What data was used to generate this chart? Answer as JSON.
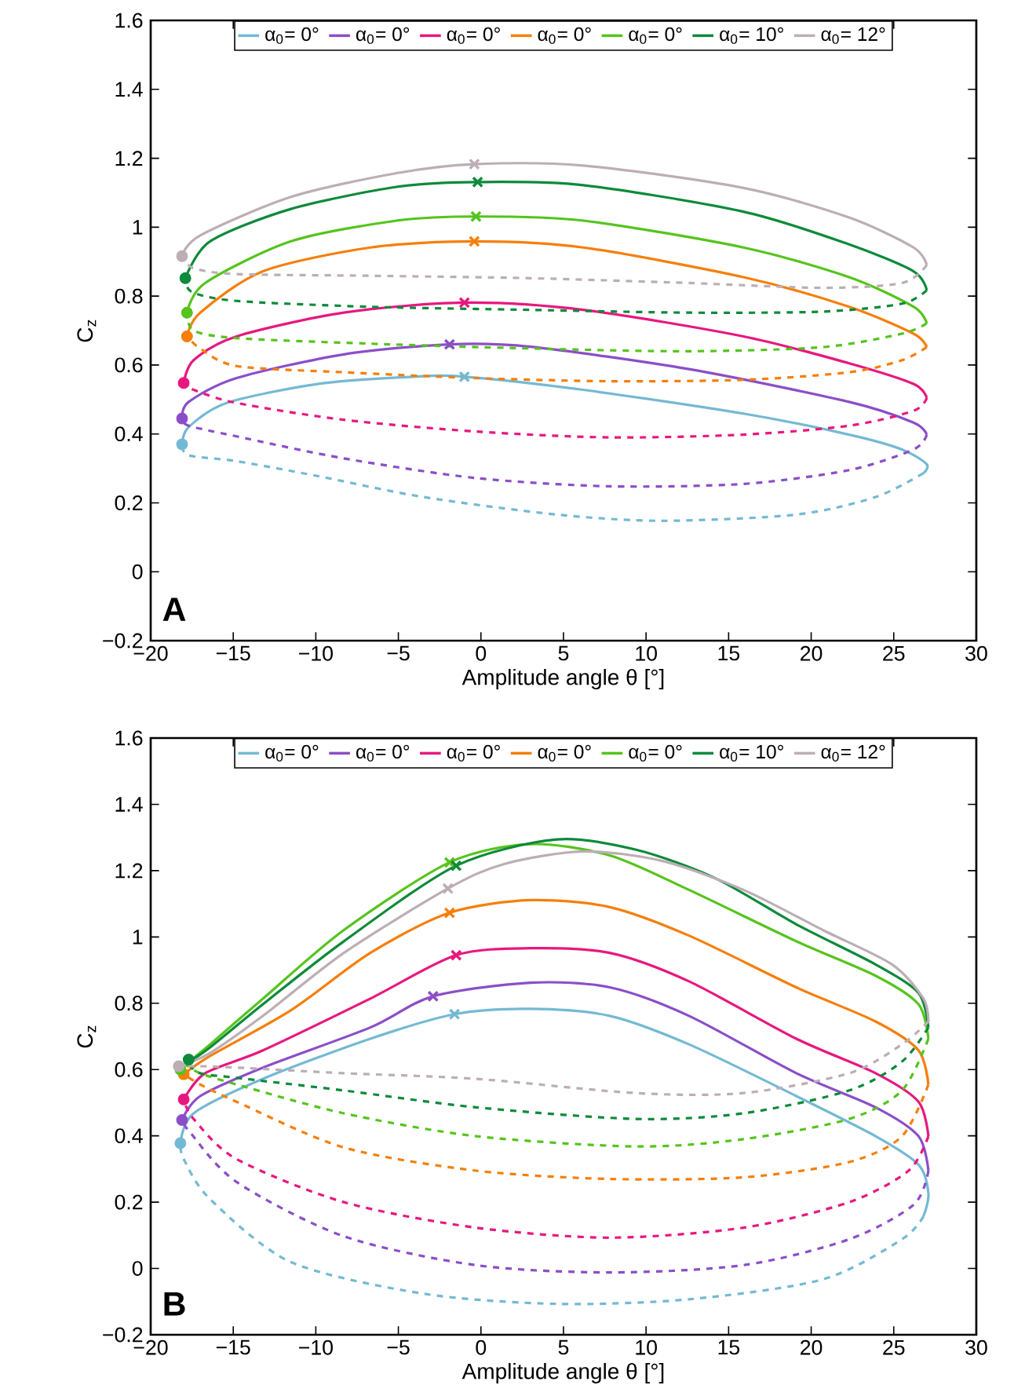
{
  "chart_data": [
    {
      "type": "line",
      "xlabel": "Amplitude angle θ [°]",
      "ylabel": "C$_{z}$",
      "annotations": [
        "**A**"
      ],
      "legend": "top",
      "xlim": [
        -20,
        30
      ],
      "ylim": [
        -0.2,
        1.6
      ],
      "xticks": [
        {
          "value": -20,
          "label": "−20"
        },
        {
          "value": -15,
          "label": "−15"
        },
        {
          "value": -10,
          "label": "−10"
        },
        {
          "value": -5,
          "label": "−5"
        },
        0,
        5,
        10,
        15,
        20,
        25,
        30
      ],
      "yticks": [
        {
          "value": -0.2,
          "label": "−0.2"
        },
        0,
        0.2,
        0.4,
        0.6,
        0.8,
        1,
        1.2,
        1.4,
        1.6
      ],
      "series": [
        {
          "name": "α$_{0}$= 0°",
          "color": "#74b9d3",
          "line_style": "solid",
          "x": [
            -18.1,
            -17.7,
            -15.4,
            -9.9,
            -4.1,
            -1.0,
            6.2,
            15.9,
            22.3,
            25.5,
            27.0,
            26.8
          ],
          "values": [
            0.37,
            0.42,
            0.49,
            0.545,
            0.566,
            0.566,
            0.528,
            0.459,
            0.398,
            0.355,
            0.312,
            0.286
          ]
        },
        {
          "color": "#74b9d3",
          "line_style": "dashed",
          "x": [
            26.8,
            23.9,
            19.1,
            11.0,
            4.6,
            -3.5,
            -9.9,
            -14.8,
            -17.7,
            -18.1
          ],
          "values": [
            0.286,
            0.217,
            0.166,
            0.148,
            0.166,
            0.217,
            0.278,
            0.321,
            0.338,
            0.37
          ]
        },
        {
          "name": "α$_{0}$= 0°",
          "color": "#8b4ec8",
          "line_style": "solid",
          "x": [
            -18.1,
            -17.7,
            -14.8,
            -8.3,
            -1.9,
            3.0,
            12.6,
            22.3,
            26.2,
            27.0
          ],
          "values": [
            0.445,
            0.493,
            0.562,
            0.631,
            0.66,
            0.653,
            0.588,
            0.493,
            0.433,
            0.398
          ]
        },
        {
          "color": "#8b4ec8",
          "line_style": "dashed",
          "x": [
            27.0,
            26.2,
            22.3,
            15.9,
            7.8,
            -0.3,
            -8.3,
            -14.8,
            -17.7,
            -18.1
          ],
          "values": [
            0.398,
            0.355,
            0.295,
            0.255,
            0.248,
            0.272,
            0.329,
            0.393,
            0.424,
            0.445
          ]
        },
        {
          "name": "α$_{0}$= 0°",
          "color": "#e8177f",
          "line_style": "solid",
          "x": [
            -18.0,
            -17.4,
            -14.8,
            -8.3,
            -1.0,
            6.2,
            15.9,
            22.3,
            26.2,
            27.0
          ],
          "values": [
            0.548,
            0.614,
            0.683,
            0.752,
            0.781,
            0.76,
            0.683,
            0.605,
            0.545,
            0.505
          ]
        },
        {
          "color": "#e8177f",
          "line_style": "dashed",
          "x": [
            27.0,
            26.2,
            22.3,
            15.9,
            7.8,
            -0.3,
            -8.3,
            -14.8,
            -17.4,
            -18.0
          ],
          "values": [
            0.505,
            0.467,
            0.424,
            0.398,
            0.39,
            0.407,
            0.441,
            0.49,
            0.528,
            0.548
          ]
        },
        {
          "name": "α$_{0}$= 0°",
          "color": "#f57f0a",
          "line_style": "solid",
          "x": [
            -17.8,
            -17.0,
            -13.2,
            -6.7,
            -0.4,
            6.2,
            15.9,
            22.3,
            26.2,
            27.0
          ],
          "values": [
            0.683,
            0.752,
            0.872,
            0.941,
            0.959,
            0.941,
            0.855,
            0.769,
            0.691,
            0.652
          ]
        },
        {
          "color": "#f57f0a",
          "line_style": "dashed",
          "x": [
            27.0,
            25.5,
            22.3,
            15.9,
            7.8,
            -0.3,
            -8.3,
            -14.8,
            -17.0,
            -17.8
          ],
          "values": [
            0.652,
            0.614,
            0.579,
            0.557,
            0.553,
            0.562,
            0.579,
            0.597,
            0.648,
            0.683
          ]
        },
        {
          "name": "α$_{0}$= 0°",
          "color": "#55c41c",
          "line_style": "solid",
          "x": [
            -17.8,
            -16.7,
            -11.5,
            -5.1,
            -0.3,
            6.2,
            15.9,
            22.3,
            26.2,
            27.0
          ],
          "values": [
            0.752,
            0.838,
            0.959,
            1.019,
            1.031,
            1.019,
            0.941,
            0.855,
            0.769,
            0.721
          ]
        },
        {
          "color": "#55c41c",
          "line_style": "dashed",
          "x": [
            27.0,
            25.5,
            20.7,
            12.6,
            3.0,
            -6.7,
            -14.8,
            -17.4,
            -17.8
          ],
          "values": [
            0.721,
            0.691,
            0.652,
            0.64,
            0.648,
            0.662,
            0.678,
            0.7,
            0.752
          ]
        },
        {
          "name": "α$_{0}$= 10°",
          "color": "#0d8a3a",
          "line_style": "solid",
          "x": [
            -17.9,
            -16.4,
            -11.5,
            -5.1,
            -0.2,
            6.2,
            15.9,
            22.3,
            26.2,
            27.0
          ],
          "values": [
            0.852,
            0.959,
            1.053,
            1.117,
            1.131,
            1.122,
            1.045,
            0.95,
            0.872,
            0.817
          ]
        },
        {
          "color": "#0d8a3a",
          "line_style": "dashed",
          "x": [
            27.0,
            25.5,
            20.7,
            12.6,
            3.0,
            -6.7,
            -14.8,
            -17.5,
            -17.9
          ],
          "values": [
            0.817,
            0.778,
            0.755,
            0.752,
            0.76,
            0.769,
            0.786,
            0.812,
            0.852
          ]
        },
        {
          "name": "α$_{0}$= 12°",
          "color": "#bcaeb5",
          "line_style": "solid",
          "x": [
            -18.1,
            -17.0,
            -11.5,
            -5.1,
            -0.4,
            6.2,
            15.9,
            22.3,
            26.2,
            27.0
          ],
          "values": [
            0.916,
            0.976,
            1.088,
            1.157,
            1.183,
            1.179,
            1.114,
            1.028,
            0.941,
            0.89
          ]
        },
        {
          "color": "#bcaeb5",
          "line_style": "dashed",
          "x": [
            27.0,
            25.5,
            20.7,
            12.6,
            3.0,
            -6.7,
            -14.8,
            -17.4,
            -18.1
          ],
          "values": [
            0.89,
            0.838,
            0.824,
            0.838,
            0.852,
            0.859,
            0.864,
            0.881,
            0.916
          ]
        },
        {
          "type": "scatter",
          "marker": "circle",
          "colors": [
            "#74b9d3",
            "#8b4ec8",
            "#e8177f",
            "#f57f0a",
            "#55c41c",
            "#0d8a3a",
            "#bcaeb5"
          ],
          "x": [
            -18.1,
            -18.1,
            -18.0,
            -17.8,
            -17.8,
            -17.9,
            -18.1
          ],
          "values": [
            0.37,
            0.445,
            0.548,
            0.683,
            0.752,
            0.852,
            0.916
          ]
        },
        {
          "type": "scatter",
          "marker": "cross",
          "colors": [
            "#74b9d3",
            "#8b4ec8",
            "#e8177f",
            "#f57f0a",
            "#55c41c",
            "#0d8a3a",
            "#bcaeb5"
          ],
          "x": [
            -1.0,
            -1.9,
            -1.0,
            -0.4,
            -0.3,
            -0.2,
            -0.4
          ],
          "values": [
            0.566,
            0.66,
            0.781,
            0.959,
            1.031,
            1.131,
            1.183
          ]
        }
      ]
    },
    {
      "type": "line",
      "xlabel": "Amplitude angle θ [°]",
      "ylabel": "C$_{z}$",
      "annotations": [
        "**B**"
      ],
      "legend": "top",
      "xlim": [
        -20,
        30
      ],
      "ylim": [
        -0.2,
        1.6
      ],
      "xticks": [
        {
          "value": -20,
          "label": "−20"
        },
        {
          "value": -15,
          "label": "−15"
        },
        {
          "value": -10,
          "label": "−10"
        },
        {
          "value": -5,
          "label": "−5"
        },
        0,
        5,
        10,
        15,
        20,
        25,
        30
      ],
      "yticks": [
        {
          "value": -0.2,
          "label": "−0.2"
        },
        0,
        0.2,
        0.4,
        0.6,
        0.8,
        1,
        1.2,
        1.4,
        1.6
      ],
      "series": [
        {
          "name": "α$_{0}$= 0°",
          "color": "#74b9d3",
          "line_style": "solid",
          "x": [
            -18.2,
            -17.4,
            -13.2,
            -6.7,
            -1.6,
            3.0,
            7.8,
            12.6,
            19.1,
            23.9,
            26.5,
            27.1,
            26.8
          ],
          "values": [
            0.378,
            0.468,
            0.572,
            0.693,
            0.767,
            0.783,
            0.762,
            0.676,
            0.52,
            0.399,
            0.313,
            0.226,
            0.157
          ]
        },
        {
          "color": "#74b9d3",
          "line_style": "dashed",
          "x": [
            26.8,
            25.5,
            20.7,
            12.6,
            4.6,
            -3.5,
            -11.5,
            -16.4,
            -18.0,
            -18.2
          ],
          "values": [
            0.157,
            0.088,
            -0.033,
            -0.093,
            -0.107,
            -0.076,
            0.019,
            0.209,
            0.33,
            0.378
          ]
        },
        {
          "name": "α$_{0}$= 0°",
          "color": "#8b4ec8",
          "line_style": "solid",
          "x": [
            -18.1,
            -17.0,
            -13.2,
            -6.7,
            -2.9,
            3.0,
            7.8,
            12.6,
            19.1,
            23.9,
            26.5,
            27.1
          ],
          "values": [
            0.448,
            0.52,
            0.606,
            0.727,
            0.821,
            0.862,
            0.848,
            0.762,
            0.589,
            0.486,
            0.399,
            0.295
          ]
        },
        {
          "color": "#8b4ec8",
          "line_style": "dashed",
          "x": [
            27.1,
            26.2,
            22.3,
            15.9,
            7.8,
            -0.3,
            -8.3,
            -14.8,
            -17.7,
            -18.1
          ],
          "values": [
            0.295,
            0.192,
            0.088,
            0.01,
            -0.012,
            0.01,
            0.097,
            0.261,
            0.416,
            0.448
          ]
        },
        {
          "name": "α$_{0}$= 0°",
          "color": "#e8177f",
          "line_style": "solid",
          "x": [
            -18.0,
            -16.7,
            -13.2,
            -6.7,
            -1.5,
            3.0,
            7.8,
            12.6,
            19.1,
            23.9,
            26.5,
            27.1
          ],
          "values": [
            0.51,
            0.589,
            0.658,
            0.814,
            0.945,
            0.966,
            0.952,
            0.866,
            0.693,
            0.589,
            0.503,
            0.399
          ]
        },
        {
          "color": "#e8177f",
          "line_style": "dashed",
          "x": [
            27.1,
            25.9,
            22.3,
            15.9,
            7.8,
            -0.3,
            -8.3,
            -14.8,
            -17.4,
            -18.0
          ],
          "values": [
            0.399,
            0.295,
            0.2,
            0.123,
            0.093,
            0.123,
            0.2,
            0.33,
            0.451,
            0.51
          ]
        },
        {
          "name": "α$_{0}$= 0°",
          "color": "#f57f0a",
          "line_style": "solid",
          "x": [
            -18.0,
            -16.4,
            -11.5,
            -6.7,
            -1.9,
            3.0,
            7.8,
            12.6,
            19.1,
            23.9,
            26.5,
            27.1
          ],
          "values": [
            0.586,
            0.641,
            0.779,
            0.952,
            1.073,
            1.111,
            1.09,
            1.004,
            0.848,
            0.745,
            0.658,
            0.555
          ]
        },
        {
          "color": "#f57f0a",
          "line_style": "dashed",
          "x": [
            27.1,
            25.5,
            22.3,
            15.9,
            7.8,
            -0.3,
            -8.3,
            -14.8,
            -17.0,
            -18.0
          ],
          "values": [
            0.555,
            0.399,
            0.321,
            0.275,
            0.27,
            0.295,
            0.365,
            0.503,
            0.555,
            0.586
          ]
        },
        {
          "name": "α$_{0}$= 0°",
          "color": "#55c41c",
          "line_style": "solid",
          "x": [
            -17.9,
            -16.4,
            -13.2,
            -8.3,
            -1.9,
            3.0,
            7.8,
            12.6,
            19.1,
            23.9,
            26.5,
            27.1
          ],
          "values": [
            0.615,
            0.676,
            0.814,
            1.021,
            1.225,
            1.28,
            1.246,
            1.142,
            0.987,
            0.883,
            0.797,
            0.693
          ]
        },
        {
          "color": "#55c41c",
          "line_style": "dashed",
          "x": [
            27.1,
            25.5,
            22.3,
            15.9,
            9.4,
            -0.3,
            -8.3,
            -14.8,
            -17.0,
            -17.9
          ],
          "values": [
            0.693,
            0.537,
            0.451,
            0.39,
            0.368,
            0.399,
            0.468,
            0.555,
            0.589,
            0.615
          ]
        },
        {
          "name": "α$_{0}$= 10°",
          "color": "#0d8a3a",
          "line_style": "solid",
          "x": [
            -17.8,
            -16.4,
            -13.2,
            -8.3,
            -1.5,
            4.6,
            9.4,
            14.2,
            19.1,
            23.9,
            26.5,
            27.1
          ],
          "values": [
            0.62,
            0.667,
            0.797,
            0.987,
            1.215,
            1.294,
            1.263,
            1.177,
            1.038,
            0.917,
            0.831,
            0.727
          ]
        },
        {
          "color": "#0d8a3a",
          "line_style": "dashed",
          "x": [
            27.1,
            25.5,
            22.3,
            15.9,
            9.4,
            -0.3,
            -8.3,
            -14.8,
            -17.0,
            -17.8
          ],
          "values": [
            0.727,
            0.624,
            0.537,
            0.468,
            0.451,
            0.486,
            0.537,
            0.575,
            0.589,
            0.62
          ]
        },
        {
          "name": "α$_{0}$= 12°",
          "color": "#bcaeb5",
          "line_style": "solid",
          "x": [
            -18.3,
            -16.4,
            -13.2,
            -8.3,
            -2.0,
            1.4,
            6.2,
            11.0,
            15.9,
            20.7,
            24.9,
            26.8,
            27.1
          ],
          "values": [
            0.61,
            0.65,
            0.762,
            0.952,
            1.146,
            1.22,
            1.258,
            1.229,
            1.142,
            1.021,
            0.917,
            0.814,
            0.745
          ]
        },
        {
          "color": "#bcaeb5",
          "line_style": "dashed",
          "x": [
            27.1,
            25.5,
            22.3,
            15.9,
            9.4,
            -0.3,
            -8.3,
            -14.8,
            -17.0,
            -18.3
          ],
          "values": [
            0.745,
            0.676,
            0.589,
            0.529,
            0.529,
            0.572,
            0.589,
            0.606,
            0.61,
            0.61
          ]
        },
        {
          "type": "scatter",
          "marker": "circle",
          "colors": [
            "#74b9d3",
            "#8b4ec8",
            "#e8177f",
            "#f57f0a",
            "#55c41c",
            "#0d8a3a",
            "#bcaeb5"
          ],
          "x": [
            -18.2,
            -18.1,
            -18.0,
            -18.0,
            -18.2,
            -17.7,
            -18.3
          ],
          "values": [
            0.378,
            0.448,
            0.51,
            0.586,
            0.6,
            0.63,
            0.61
          ]
        },
        {
          "type": "scatter",
          "marker": "cross",
          "colors": [
            "#74b9d3",
            "#8b4ec8",
            "#e8177f",
            "#f57f0a",
            "#55c41c",
            "#0d8a3a",
            "#bcaeb5"
          ],
          "x": [
            -1.6,
            -2.9,
            -1.5,
            -1.9,
            -1.9,
            -1.5,
            -2.0
          ],
          "values": [
            0.767,
            0.821,
            0.945,
            1.073,
            1.225,
            1.215,
            1.146
          ]
        }
      ]
    }
  ]
}
